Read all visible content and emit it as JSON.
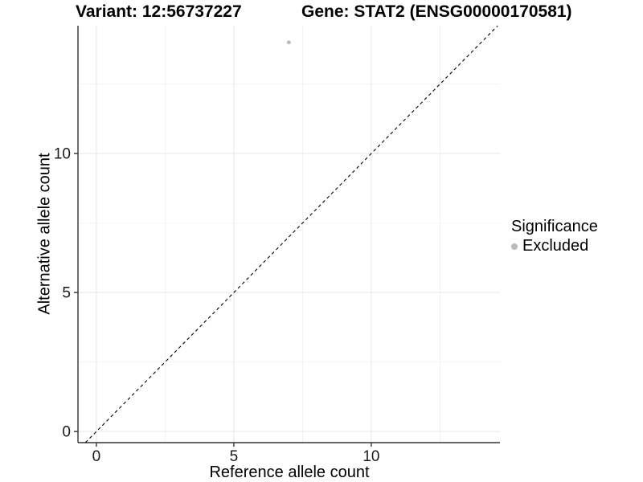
{
  "titles": {
    "variant": "Variant: 12:56737227",
    "gene": "Gene: STAT2 (ENSG00000170581)"
  },
  "legend": {
    "title": "Significance",
    "items": [
      {
        "label": "Excluded",
        "color": "#b9b9b9"
      }
    ]
  },
  "colors": {
    "background": "#ffffff",
    "axis_line": "#333333",
    "tick_mark": "#333333",
    "tick_label": "#1a1a1a",
    "grid_major": "#e6e6e6",
    "grid_minor": "#f2f2f2",
    "reference_line": "#000000",
    "point": "#b9b9b9"
  },
  "chart_data": {
    "type": "scatter",
    "title": "Variant: 12:56737227 | Gene: STAT2 (ENSG00000170581)",
    "xlabel": "Reference allele count",
    "ylabel": "Alternative allele count",
    "xlim": [
      -0.67,
      14.68
    ],
    "ylim": [
      -0.4,
      14.6
    ],
    "x_ticks": [
      0,
      5,
      10
    ],
    "y_ticks": [
      0,
      5,
      10
    ],
    "x_minor_ticks": [
      2.5,
      7.5,
      12.5
    ],
    "y_minor_ticks": [
      2.5,
      7.5,
      12.5
    ],
    "grid": true,
    "legend_position": "right",
    "series": [
      {
        "name": "Excluded",
        "color": "#b9b9b9",
        "points": [
          {
            "x": 7,
            "y": 14
          }
        ]
      }
    ],
    "reference_line": {
      "style": "dashed",
      "equation": "y = x",
      "color": "#000000"
    }
  }
}
